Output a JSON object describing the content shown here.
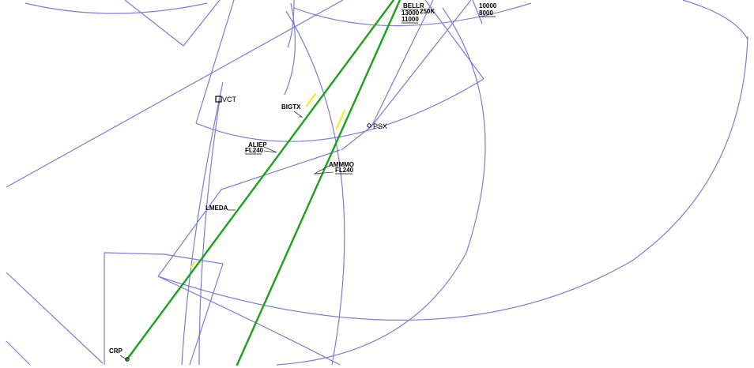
{
  "colors": {
    "background": "#ffffff",
    "airspace": "#7b7bdc",
    "route": "#1aa31a",
    "route_highlight": "#f2ee33",
    "label": "#000000",
    "leader": "#3a3a3a"
  },
  "waypoints": {
    "vct": "VCT",
    "psx": "PSX",
    "bigtx": "BIGTX",
    "aliep": "ALIEP",
    "aliep_fl": "FL240",
    "ammmo": "AMMMO",
    "ammmo_fl": "FL240",
    "lmeda": "LMEDA",
    "crp": "CRP",
    "bellr": "BELLR"
  },
  "constraints": {
    "bellr_alt_upper": "13000",
    "bellr_alt_lower": "11000",
    "bellr_speed": "250K",
    "alt_upper": "10000",
    "alt_lower": "8000"
  },
  "icons": [
    "vortac-icon",
    "waypoint-icon"
  ]
}
